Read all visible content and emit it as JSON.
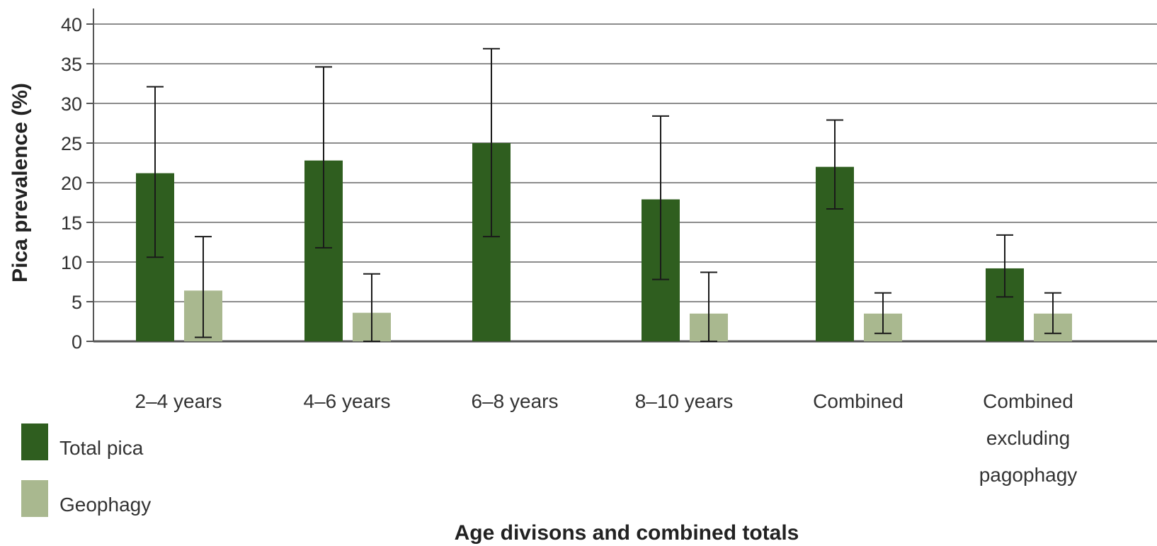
{
  "chart_data": {
    "type": "bar",
    "title": "",
    "xlabel": "Age divisons and combined totals",
    "ylabel": "Pica prevalence (%)",
    "ylim": [
      0,
      40
    ],
    "yticks": [
      "0",
      "5",
      "10",
      "15",
      "20",
      "25",
      "30",
      "35",
      "40"
    ],
    "grid": true,
    "legend_position": "bottom-left",
    "categories": [
      [
        "2–4 years"
      ],
      [
        "4–6 years"
      ],
      [
        "6–8 years"
      ],
      [
        "8–10 years"
      ],
      [
        "Combined"
      ],
      [
        "Combined",
        "excluding",
        "pagophagy"
      ]
    ],
    "series": [
      {
        "name": "Total pica",
        "color": "#2f5e1f",
        "values": [
          21.2,
          22.8,
          25.0,
          17.9,
          22.0,
          9.2
        ],
        "error_low": [
          10.6,
          11.8,
          13.2,
          7.8,
          16.7,
          5.6
        ],
        "error_high": [
          32.1,
          34.6,
          36.9,
          28.4,
          27.9,
          13.4
        ]
      },
      {
        "name": "Geophagy",
        "color": "#a9b88f",
        "values": [
          6.4,
          3.6,
          null,
          3.5,
          3.5,
          3.5
        ],
        "error_low": [
          0.5,
          0.0,
          null,
          0.0,
          1.0,
          1.0
        ],
        "error_high": [
          13.2,
          8.5,
          null,
          8.7,
          6.1,
          6.1
        ]
      }
    ],
    "colors": {
      "grid": "#8c8c8c",
      "axis": "#555555",
      "error_bar": "#1a1a1a"
    }
  }
}
